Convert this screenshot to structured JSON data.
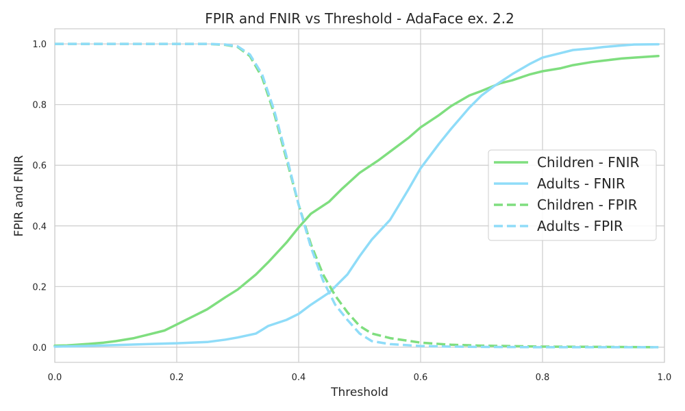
{
  "chart_data": {
    "type": "line",
    "title": "FPIR and FNIR vs Threshold - AdaFace ex. 2.2",
    "xlabel": "Threshold",
    "ylabel": "FPIR and FNIR",
    "xlim": [
      0.0,
      1.0
    ],
    "ylim": [
      -0.05,
      1.05
    ],
    "xticks": [
      "0.0",
      "0.2",
      "0.4",
      "0.6",
      "0.8",
      "1.0"
    ],
    "yticks": [
      "0.0",
      "0.2",
      "0.4",
      "0.6",
      "0.8",
      "1.0"
    ],
    "grid": true,
    "legend_position": "center-right",
    "series": [
      {
        "name": "Children - FNIR",
        "color": "#7fde7f",
        "style": "solid",
        "x": [
          0.0,
          0.02,
          0.05,
          0.08,
          0.1,
          0.13,
          0.15,
          0.18,
          0.2,
          0.23,
          0.25,
          0.28,
          0.3,
          0.33,
          0.35,
          0.38,
          0.4,
          0.42,
          0.45,
          0.47,
          0.5,
          0.53,
          0.55,
          0.58,
          0.6,
          0.63,
          0.65,
          0.68,
          0.7,
          0.73,
          0.75,
          0.78,
          0.8,
          0.83,
          0.85,
          0.88,
          0.9,
          0.93,
          0.95,
          0.99
        ],
        "y": [
          0.005,
          0.006,
          0.01,
          0.015,
          0.02,
          0.03,
          0.04,
          0.055,
          0.075,
          0.105,
          0.125,
          0.165,
          0.19,
          0.24,
          0.28,
          0.345,
          0.395,
          0.44,
          0.48,
          0.52,
          0.575,
          0.615,
          0.645,
          0.69,
          0.725,
          0.765,
          0.795,
          0.83,
          0.845,
          0.87,
          0.88,
          0.9,
          0.91,
          0.92,
          0.93,
          0.94,
          0.945,
          0.952,
          0.955,
          0.96
        ]
      },
      {
        "name": "Adults - FNIR",
        "color": "#8fdcf8",
        "style": "solid",
        "x": [
          0.0,
          0.05,
          0.1,
          0.15,
          0.2,
          0.25,
          0.28,
          0.3,
          0.33,
          0.35,
          0.38,
          0.4,
          0.42,
          0.45,
          0.48,
          0.5,
          0.52,
          0.55,
          0.58,
          0.6,
          0.63,
          0.65,
          0.68,
          0.7,
          0.72,
          0.75,
          0.78,
          0.8,
          0.83,
          0.85,
          0.88,
          0.9,
          0.93,
          0.95,
          0.99
        ],
        "y": [
          0.002,
          0.004,
          0.007,
          0.01,
          0.013,
          0.017,
          0.025,
          0.032,
          0.045,
          0.07,
          0.09,
          0.11,
          0.14,
          0.18,
          0.24,
          0.3,
          0.355,
          0.42,
          0.52,
          0.59,
          0.67,
          0.72,
          0.79,
          0.83,
          0.86,
          0.9,
          0.935,
          0.955,
          0.97,
          0.98,
          0.985,
          0.99,
          0.995,
          0.998,
          0.999
        ]
      },
      {
        "name": "Children - FPIR",
        "color": "#7fde7f",
        "style": "dashed",
        "x": [
          0.0,
          0.1,
          0.2,
          0.25,
          0.28,
          0.3,
          0.32,
          0.34,
          0.36,
          0.38,
          0.4,
          0.42,
          0.44,
          0.46,
          0.48,
          0.5,
          0.52,
          0.55,
          0.6,
          0.65,
          0.7,
          0.8,
          0.9,
          0.99
        ],
        "y": [
          1.0,
          1.0,
          1.0,
          1.0,
          0.997,
          0.99,
          0.96,
          0.89,
          0.77,
          0.62,
          0.47,
          0.34,
          0.24,
          0.17,
          0.115,
          0.07,
          0.045,
          0.03,
          0.015,
          0.008,
          0.005,
          0.002,
          0.001,
          0.0
        ]
      },
      {
        "name": "Adults - FPIR",
        "color": "#8fdcf8",
        "style": "dashed",
        "x": [
          0.0,
          0.1,
          0.2,
          0.25,
          0.28,
          0.3,
          0.32,
          0.34,
          0.36,
          0.38,
          0.4,
          0.42,
          0.44,
          0.46,
          0.48,
          0.5,
          0.52,
          0.55,
          0.6,
          0.65,
          0.7,
          0.8,
          0.9,
          0.99
        ],
        "y": [
          1.0,
          1.0,
          1.0,
          1.0,
          0.998,
          0.992,
          0.965,
          0.9,
          0.78,
          0.63,
          0.47,
          0.33,
          0.22,
          0.14,
          0.09,
          0.045,
          0.02,
          0.01,
          0.004,
          0.002,
          0.001,
          0.0,
          0.0,
          0.0
        ]
      }
    ]
  }
}
